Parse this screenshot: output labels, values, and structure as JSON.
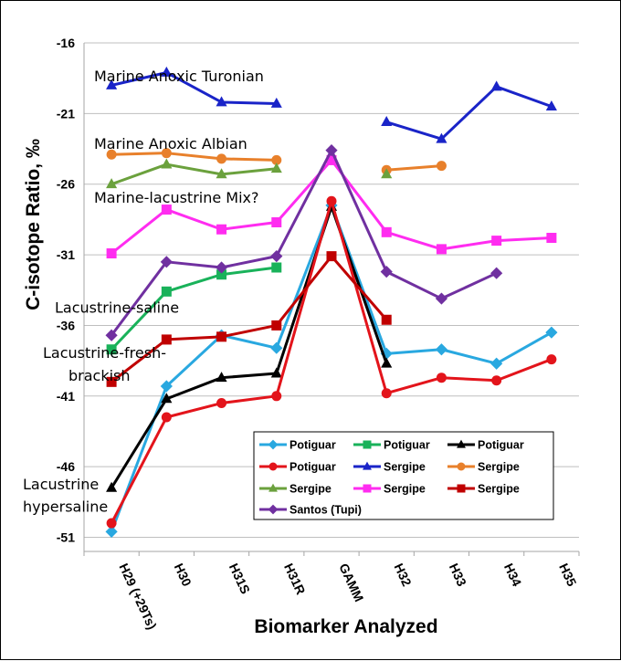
{
  "chart_data": {
    "type": "line",
    "xlabel": "Biomarker Analyzed",
    "ylabel": "C-isotope Ratio, ‰",
    "ylim": [
      -52,
      -16
    ],
    "yticks": [
      -16,
      -21,
      -26,
      -31,
      -36,
      -41,
      -46,
      -51
    ],
    "categories": [
      "H29 (+29Ts)",
      "H30",
      "H31S",
      "H31R",
      "GAMM",
      "H32",
      "H33",
      "H34",
      "H35"
    ],
    "grid": "horizontal",
    "legend_position": "lower-right",
    "annotations": [
      {
        "text": "Marine Anoxic Turonian",
        "x": 0,
        "y": -18.7
      },
      {
        "text": "Marine Anoxic Albian",
        "x": 0,
        "y": -23.5
      },
      {
        "text": "Marine-lacustrine  Mix?",
        "x": 0,
        "y": -27.3
      },
      {
        "text": "Lacustrine-saline",
        "x": 0,
        "y": -35.1
      },
      {
        "text": "Lacustrine-fresh-",
        "x": 0,
        "y": -38.3
      },
      {
        "text": "brackish",
        "x": 0,
        "y": -39.9
      },
      {
        "text": "Lacustrine",
        "x": 0,
        "y": -47.6
      },
      {
        "text": "hypersaline",
        "x": 0,
        "y": -49.2
      }
    ],
    "series": [
      {
        "name": "Potiguar",
        "color": "#29a8e0",
        "marker": "diamond",
        "values": [
          -50.6,
          -40.3,
          -36.7,
          -37.6,
          -27.5,
          -38.0,
          -37.7,
          -38.7,
          -36.5
        ]
      },
      {
        "name": "Potiguar",
        "color": "#19b25a",
        "marker": "square",
        "values": [
          -37.7,
          -33.6,
          -32.4,
          -31.9,
          null,
          null,
          null,
          null,
          null
        ]
      },
      {
        "name": "Potiguar",
        "color": "#000000",
        "marker": "triangle",
        "values": [
          -47.5,
          -41.2,
          -39.7,
          -39.4,
          -27.6,
          -38.7,
          null,
          null,
          null
        ]
      },
      {
        "name": "Potiguar",
        "color": "#e3141b",
        "marker": "circle",
        "values": [
          -50.0,
          -42.5,
          -41.5,
          -41.0,
          -27.2,
          -40.8,
          -39.7,
          -39.9,
          -38.4
        ]
      },
      {
        "name": "Sergipe",
        "color": "#1a24c8",
        "marker": "triangle",
        "values": [
          -19.0,
          -18.1,
          -20.2,
          -20.3,
          null,
          -21.6,
          -22.8,
          -19.1,
          -20.5
        ]
      },
      {
        "name": "Sergipe",
        "color": "#e8802b",
        "marker": "circle",
        "values": [
          -23.9,
          -23.8,
          -24.2,
          -24.3,
          null,
          -25.0,
          -24.7,
          null,
          null
        ]
      },
      {
        "name": "Sergipe",
        "color": "#6ba13d",
        "marker": "triangle",
        "values": [
          -26.0,
          -24.6,
          -25.3,
          -24.9,
          null,
          -25.3,
          null,
          null,
          null
        ]
      },
      {
        "name": "Sergipe",
        "color": "#ff2cf0",
        "marker": "square",
        "values": [
          -30.9,
          -27.8,
          -29.2,
          -28.7,
          -24.3,
          -29.4,
          -30.6,
          -30.0,
          -29.8
        ]
      },
      {
        "name": "Sergipe",
        "color": "#c00000",
        "marker": "square",
        "values": [
          -40.0,
          -37.0,
          -36.8,
          -36.0,
          -31.1,
          -35.6,
          null,
          null,
          null
        ]
      },
      {
        "name": "Santos (Tupi)",
        "color": "#7030a0",
        "marker": "diamond",
        "values": [
          -36.7,
          -31.5,
          -31.9,
          -31.1,
          -23.6,
          -32.2,
          -34.1,
          -32.3,
          null
        ]
      }
    ]
  }
}
